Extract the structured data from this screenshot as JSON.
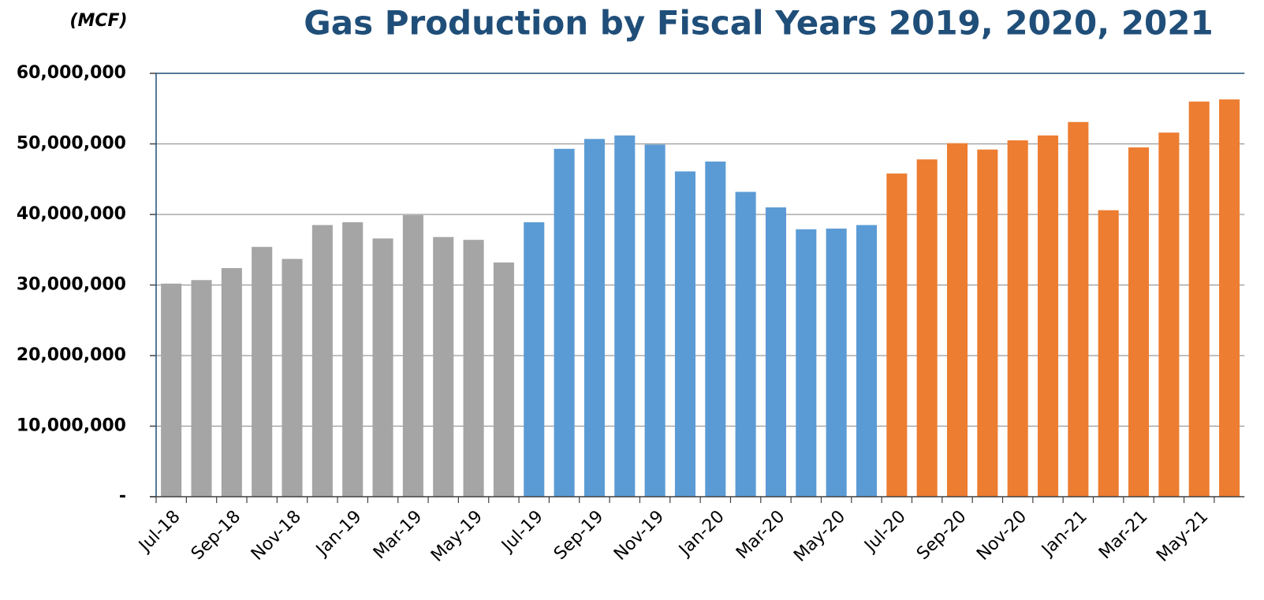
{
  "chart_data": {
    "type": "bar",
    "title": "Gas Production by Fiscal Years 2019, 2020, 2021",
    "unit_label": "(MCF)",
    "categories": [
      "Jul-18",
      null,
      "Sep-18",
      null,
      "Nov-18",
      null,
      "Jan-19",
      null,
      "Mar-19",
      null,
      "May-19",
      null,
      "Jul-19",
      null,
      "Sep-19",
      null,
      "Nov-19",
      null,
      "Jan-20",
      null,
      "Mar-20",
      null,
      "May-20",
      null,
      "Jul-20",
      null,
      "Sep-20",
      null,
      "Nov-20",
      null,
      "Jan-21",
      null,
      "Mar-21",
      null,
      "May-21",
      null
    ],
    "values": [
      30200000,
      30700000,
      32400000,
      35400000,
      33700000,
      38500000,
      38900000,
      36600000,
      39900000,
      36800000,
      36400000,
      33200000,
      38900000,
      49300000,
      50700000,
      51200000,
      49900000,
      46100000,
      47500000,
      43200000,
      41000000,
      37900000,
      38000000,
      38500000,
      45800000,
      47800000,
      50100000,
      49200000,
      50500000,
      51200000,
      53100000,
      40600000,
      49500000,
      51600000,
      56000000,
      56300000
    ],
    "colors": [
      "#a5a5a5",
      "#a5a5a5",
      "#a5a5a5",
      "#a5a5a5",
      "#a5a5a5",
      "#a5a5a5",
      "#a5a5a5",
      "#a5a5a5",
      "#a5a5a5",
      "#a5a5a5",
      "#a5a5a5",
      "#a5a5a5",
      "#5b9bd5",
      "#5b9bd5",
      "#5b9bd5",
      "#5b9bd5",
      "#5b9bd5",
      "#5b9bd5",
      "#5b9bd5",
      "#5b9bd5",
      "#5b9bd5",
      "#5b9bd5",
      "#5b9bd5",
      "#5b9bd5",
      "#ed7d31",
      "#ed7d31",
      "#ed7d31",
      "#ed7d31",
      "#ed7d31",
      "#ed7d31",
      "#ed7d31",
      "#ed7d31",
      "#ed7d31",
      "#ed7d31",
      "#ed7d31",
      "#ed7d31"
    ],
    "ylim": [
      0,
      60000000
    ],
    "yticks": [
      {
        "value": 0,
        "label": "-"
      },
      {
        "value": 10000000,
        "label": "10,000,000"
      },
      {
        "value": 20000000,
        "label": "20,000,000"
      },
      {
        "value": 30000000,
        "label": "30,000,000"
      },
      {
        "value": 40000000,
        "label": "40,000,000"
      },
      {
        "value": 50000000,
        "label": "50,000,000"
      },
      {
        "value": 60000000,
        "label": "60,000,000"
      }
    ],
    "grid": true
  }
}
